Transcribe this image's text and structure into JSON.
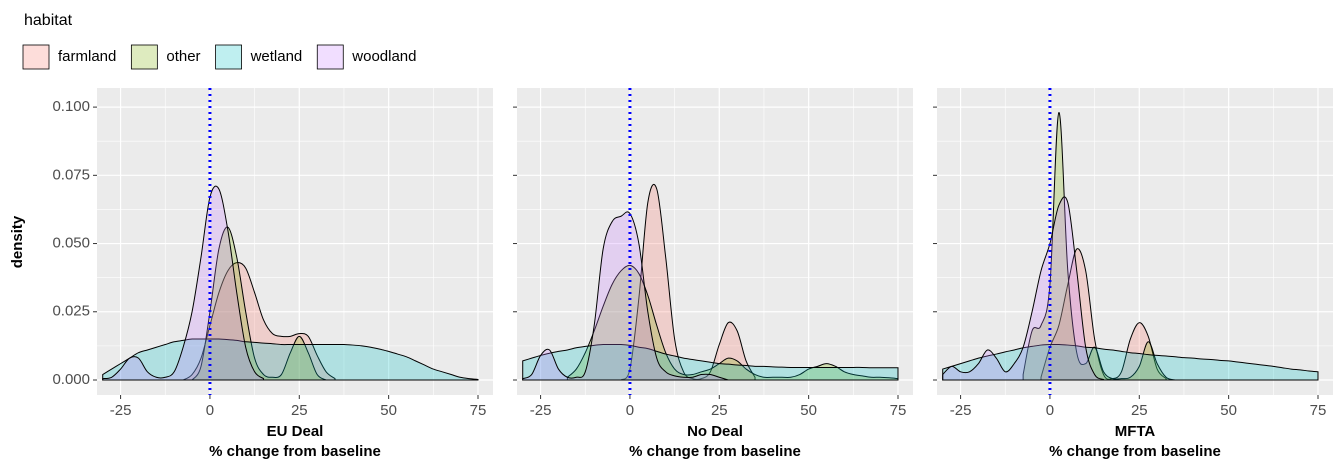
{
  "chart_data": [
    {
      "type": "density",
      "legend_title": "habitat",
      "ylabel": "density",
      "xlabel": [
        "EU Deal",
        "% change from baseline"
      ],
      "xlim": [
        -31.6,
        79.2
      ],
      "ylim": [
        -0.0055,
        0.107
      ],
      "xticks": [
        -25,
        0,
        25,
        50,
        75
      ],
      "yticks": [
        {
          "value": 0,
          "label": "0.000"
        },
        {
          "value": 0.025,
          "label": "0.025"
        },
        {
          "value": 0.05,
          "label": "0.050"
        },
        {
          "value": 0.075,
          "label": "0.075"
        },
        {
          "value": 0.1,
          "label": "0.100"
        }
      ],
      "show_ytick_labels": true,
      "grid": true,
      "alpha": 0.25,
      "vline": 0,
      "vline_color": "#0000ff",
      "x": [
        -30,
        -27.5,
        -25,
        -22.5,
        -20,
        -17.5,
        -15,
        -12.5,
        -10,
        -7.5,
        -5,
        -2.5,
        0,
        2.5,
        5,
        7.5,
        10,
        12.5,
        15,
        17.5,
        20,
        22.5,
        25,
        27.5,
        30,
        32.5,
        35,
        37.5,
        40,
        42.5,
        45,
        47.5,
        50,
        52.5,
        55,
        57.5,
        60,
        62.5,
        65,
        67.5,
        70,
        72.5,
        75
      ],
      "series": [
        {
          "name": "farmland",
          "color": "#F8766D",
          "values": [
            null,
            null,
            null,
            null,
            null,
            null,
            null,
            null,
            null,
            0,
            0.002,
            0.008,
            0.02,
            0.032,
            0.04,
            0.043,
            0.041,
            0.032,
            0.022,
            0.017,
            0.016,
            0.016,
            0.017,
            0.016,
            0.009,
            0.003,
            0.0005,
            null,
            null,
            null,
            null,
            null,
            null,
            null,
            null,
            null,
            null,
            null,
            null,
            null,
            null,
            null,
            null
          ]
        },
        {
          "name": "other",
          "color": "#7CAE00",
          "values": [
            null,
            null,
            null,
            null,
            null,
            null,
            null,
            null,
            null,
            null,
            0,
            0.005,
            0.025,
            0.048,
            0.056,
            0.045,
            0.025,
            0.008,
            0.002,
            0.001,
            0.002,
            0.01,
            0.016,
            0.01,
            0.002,
            0,
            null,
            null,
            null,
            null,
            null,
            null,
            null,
            null,
            null,
            null,
            null,
            null,
            null,
            null,
            null,
            null,
            null
          ]
        },
        {
          "name": "wetland",
          "color": "#00BFC4",
          "values": [
            0.002,
            0.004,
            0.006,
            0.008,
            0.01,
            0.011,
            0.012,
            0.013,
            0.014,
            0.0145,
            0.015,
            0.015,
            0.015,
            0.015,
            0.0148,
            0.0145,
            0.014,
            0.0138,
            0.0135,
            0.0133,
            0.013,
            0.013,
            0.013,
            0.013,
            0.013,
            0.013,
            0.013,
            0.013,
            0.0128,
            0.0125,
            0.012,
            0.0113,
            0.0105,
            0.0095,
            0.0085,
            0.007,
            0.0055,
            0.004,
            0.003,
            0.002,
            0.001,
            0.0005,
            0.0002
          ]
        },
        {
          "name": "woodland",
          "color": "#C77CFF",
          "values": [
            0.0005,
            0.001,
            0.004,
            0.008,
            0.008,
            0.003,
            0.001,
            0.001,
            0.003,
            0.012,
            0.025,
            0.045,
            0.067,
            0.07,
            0.055,
            0.032,
            0.012,
            0.003,
            0.0005,
            null,
            null,
            null,
            null,
            null,
            null,
            null,
            null,
            null,
            null,
            null,
            null,
            null,
            null,
            null,
            null,
            null,
            null,
            null,
            null,
            null,
            null,
            null,
            null
          ]
        }
      ]
    },
    {
      "type": "density",
      "xlabel": [
        "No Deal",
        "% change from baseline"
      ],
      "xlim": [
        -31.6,
        79.2
      ],
      "ylim": [
        -0.0055,
        0.107
      ],
      "xticks": [
        -25,
        0,
        25,
        50,
        75
      ],
      "yticks": [
        0,
        0.025,
        0.05,
        0.075,
        0.1
      ],
      "show_ytick_labels": false,
      "grid": true,
      "alpha": 0.25,
      "vline": 0,
      "vline_color": "#0000ff",
      "x": [
        -30,
        -27.5,
        -25,
        -22.5,
        -20,
        -17.5,
        -15,
        -12.5,
        -10,
        -7.5,
        -5,
        -2.5,
        0,
        2.5,
        5,
        7.5,
        10,
        12.5,
        15,
        17.5,
        20,
        22.5,
        25,
        27.5,
        30,
        32.5,
        35,
        37.5,
        40,
        42.5,
        45,
        47.5,
        50,
        52.5,
        55,
        57.5,
        60,
        62.5,
        65,
        67.5,
        70,
        72.5,
        75
      ],
      "series": [
        {
          "name": "farmland",
          "color": "#F8766D",
          "values": [
            null,
            null,
            null,
            null,
            null,
            null,
            null,
            null,
            null,
            null,
            null,
            0,
            0.004,
            0.03,
            0.065,
            0.07,
            0.045,
            0.015,
            0.003,
            0.0005,
            0.0005,
            0.003,
            0.013,
            0.021,
            0.018,
            0.007,
            0.001,
            null,
            null,
            null,
            null,
            null,
            null,
            null,
            null,
            null,
            null,
            null,
            null,
            null,
            null,
            null,
            null
          ]
        },
        {
          "name": "other",
          "color": "#7CAE00",
          "values": [
            null,
            null,
            null,
            null,
            null,
            0.001,
            0.004,
            0.01,
            0.018,
            0.027,
            0.035,
            0.04,
            0.042,
            0.039,
            0.031,
            0.02,
            0.01,
            0.004,
            0.002,
            0.002,
            0.003,
            0.004,
            0.006,
            0.008,
            0.007,
            0.004,
            0.002,
            0.001,
            0.001,
            0.001,
            0.001,
            0.002,
            0.004,
            0.005,
            0.006,
            0.005,
            0.003,
            0.002,
            0.0015,
            0.001,
            0.001,
            0.0008,
            0.0005
          ]
        },
        {
          "name": "wetland",
          "color": "#00BFC4",
          "values": [
            0.007,
            0.008,
            0.009,
            0.0098,
            0.0105,
            0.011,
            0.0118,
            0.0123,
            0.0127,
            0.013,
            0.013,
            0.013,
            0.0127,
            0.012,
            0.0115,
            0.0105,
            0.0095,
            0.0088,
            0.008,
            0.0075,
            0.007,
            0.0065,
            0.006,
            0.0058,
            0.0055,
            0.0053,
            0.005,
            0.005,
            0.0048,
            0.0047,
            0.0046,
            0.0046,
            0.0046,
            0.0046,
            0.0046,
            0.0046,
            0.0046,
            0.0046,
            0.0046,
            0.0045,
            0.0045,
            0.0045,
            0.0045
          ]
        },
        {
          "name": "woodland",
          "color": "#C77CFF",
          "values": [
            0.0005,
            0.002,
            0.009,
            0.011,
            0.004,
            0.001,
            0.001,
            0.003,
            0.02,
            0.048,
            0.058,
            0.06,
            0.061,
            0.05,
            0.025,
            0.008,
            0.003,
            0.0015,
            0.001,
            0.001,
            0.002,
            0.002,
            0.001,
            0,
            null,
            null,
            null,
            null,
            null,
            null,
            null,
            null,
            null,
            null,
            null,
            null,
            null,
            null,
            null,
            null,
            null,
            null,
            null
          ]
        }
      ]
    },
    {
      "type": "density",
      "xlabel": [
        "MFTA",
        "% change from baseline"
      ],
      "xlim": [
        -31.6,
        79.2
      ],
      "ylim": [
        -0.0055,
        0.107
      ],
      "xticks": [
        -25,
        0,
        25,
        50,
        75
      ],
      "yticks": [
        0,
        0.025,
        0.05,
        0.075,
        0.1
      ],
      "show_ytick_labels": false,
      "grid": true,
      "alpha": 0.25,
      "vline": 0,
      "vline_color": "#0000ff",
      "x": [
        -30,
        -27.5,
        -25,
        -22.5,
        -20,
        -17.5,
        -15,
        -12.5,
        -10,
        -7.5,
        -5,
        -2.5,
        0,
        2.5,
        5,
        7.5,
        10,
        12.5,
        15,
        17.5,
        20,
        22.5,
        25,
        27.5,
        30,
        32.5,
        35,
        37.5,
        40,
        42.5,
        45,
        47.5,
        50,
        52.5,
        55,
        57.5,
        60,
        62.5,
        65,
        67.5,
        70,
        72.5,
        75
      ],
      "series": [
        {
          "name": "farmland",
          "color": "#F8766D",
          "values": [
            null,
            null,
            null,
            null,
            null,
            null,
            null,
            null,
            null,
            null,
            null,
            0.001,
            0.012,
            0.02,
            0.035,
            0.048,
            0.04,
            0.015,
            0.002,
            0.0005,
            0.003,
            0.015,
            0.021,
            0.016,
            0.004,
            0.0005,
            null,
            null,
            null,
            null,
            null,
            null,
            null,
            null,
            null,
            null,
            null,
            null,
            null,
            null,
            null,
            null,
            null
          ]
        },
        {
          "name": "other",
          "color": "#7CAE00",
          "values": [
            null,
            null,
            null,
            null,
            null,
            null,
            null,
            null,
            null,
            0.002,
            0.018,
            0.02,
            0.035,
            0.098,
            0.04,
            0.01,
            0.006,
            0.012,
            0.003,
            0.0005,
            0.0005,
            0.001,
            0.005,
            0.014,
            0.006,
            0.001,
            0,
            null,
            null,
            null,
            null,
            null,
            null,
            null,
            null,
            null,
            null,
            null,
            null,
            null,
            null,
            null,
            null
          ]
        },
        {
          "name": "wetland",
          "color": "#00BFC4",
          "values": [
            0.004,
            0.005,
            0.006,
            0.007,
            0.008,
            0.0088,
            0.0095,
            0.0103,
            0.011,
            0.0118,
            0.0123,
            0.0128,
            0.013,
            0.013,
            0.0128,
            0.0125,
            0.012,
            0.0118,
            0.0113,
            0.011,
            0.0105,
            0.01,
            0.0097,
            0.0093,
            0.009,
            0.0088,
            0.0085,
            0.0082,
            0.008,
            0.0077,
            0.0075,
            0.0072,
            0.007,
            0.0066,
            0.0062,
            0.0058,
            0.0054,
            0.005,
            0.0045,
            0.004,
            0.0037,
            0.0033,
            0.003
          ]
        },
        {
          "name": "woodland",
          "color": "#C77CFF",
          "values": [
            0.002,
            0.005,
            0.003,
            0.003,
            0.006,
            0.011,
            0.008,
            0.003,
            0.006,
            0.012,
            0.025,
            0.04,
            0.05,
            0.064,
            0.065,
            0.04,
            0.012,
            0.002,
            0.0002,
            null,
            null,
            null,
            null,
            null,
            null,
            null,
            null,
            null,
            null,
            null,
            null,
            null,
            null,
            null,
            null,
            null,
            null,
            null,
            null,
            null,
            null,
            null,
            null
          ]
        }
      ]
    }
  ]
}
